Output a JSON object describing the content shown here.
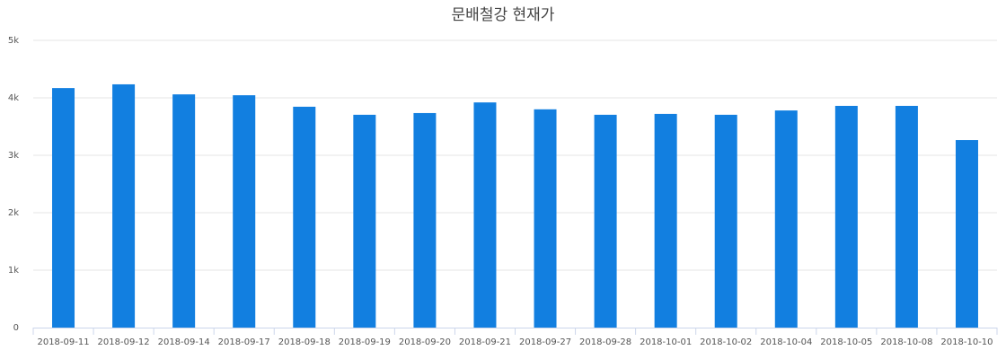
{
  "chart_data": {
    "type": "bar",
    "title": "문배철강 현재가",
    "categories": [
      "2018-09-11",
      "2018-09-12",
      "2018-09-14",
      "2018-09-17",
      "2018-09-18",
      "2018-09-19",
      "2018-09-20",
      "2018-09-21",
      "2018-09-27",
      "2018-09-28",
      "2018-10-01",
      "2018-10-02",
      "2018-10-04",
      "2018-10-05",
      "2018-10-08",
      "2018-10-10"
    ],
    "values": [
      4170,
      4235,
      4060,
      4045,
      3845,
      3705,
      3735,
      3920,
      3800,
      3705,
      3720,
      3705,
      3780,
      3860,
      3860,
      3265
    ],
    "color": "#127fe0",
    "ylim": [
      0,
      5000
    ],
    "yticks": [
      0,
      {
        "value": 1000,
        "label": "1k"
      },
      {
        "value": 2000,
        "label": "2k"
      },
      {
        "value": 3000,
        "label": "3k"
      },
      {
        "value": 4000,
        "label": "4k"
      },
      {
        "value": 5000,
        "label": "5k"
      }
    ],
    "grid": true
  }
}
